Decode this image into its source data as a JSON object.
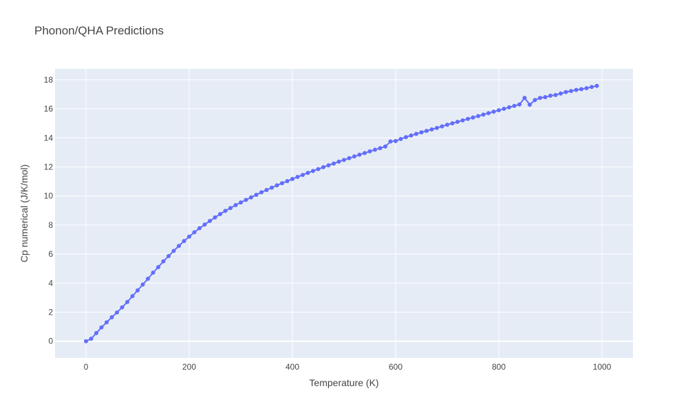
{
  "chart_data": {
    "type": "line",
    "title": "Phonon/QHA Predictions",
    "xlabel": "Temperature (K)",
    "ylabel": "Cp numerical (J/K/mol)",
    "xlim": [
      -60,
      1060
    ],
    "ylim": [
      -1.15,
      18.75
    ],
    "xticks": [
      0,
      200,
      400,
      600,
      800,
      1000
    ],
    "yticks": [
      0,
      2,
      4,
      6,
      8,
      10,
      12,
      14,
      16,
      18
    ],
    "grid": true,
    "legend": "none",
    "colors": {
      "series": "#636efa",
      "plot_bg": "#e5ecf6",
      "grid": "#ffffff"
    },
    "series": [
      {
        "mode": "lines+markers",
        "x": [
          0,
          10,
          20,
          30,
          40,
          50,
          60,
          70,
          80,
          90,
          100,
          110,
          120,
          130,
          140,
          150,
          160,
          170,
          180,
          190,
          200,
          210,
          220,
          230,
          240,
          250,
          260,
          270,
          280,
          290,
          300,
          310,
          320,
          330,
          340,
          350,
          360,
          370,
          380,
          390,
          400,
          410,
          420,
          430,
          440,
          450,
          460,
          470,
          480,
          490,
          500,
          510,
          520,
          530,
          540,
          550,
          560,
          570,
          580,
          590,
          600,
          610,
          620,
          630,
          640,
          650,
          660,
          670,
          680,
          690,
          700,
          710,
          720,
          730,
          740,
          750,
          760,
          770,
          780,
          790,
          800,
          810,
          820,
          830,
          840,
          850,
          860,
          870,
          880,
          890,
          900,
          910,
          920,
          930,
          940,
          950,
          960,
          970,
          980,
          990
        ],
        "y": [
          0,
          0.17,
          0.56,
          0.95,
          1.3,
          1.65,
          1.98,
          2.33,
          2.7,
          3.1,
          3.5,
          3.9,
          4.3,
          4.72,
          5.1,
          5.5,
          5.86,
          6.22,
          6.56,
          6.9,
          7.2,
          7.5,
          7.78,
          8.03,
          8.28,
          8.52,
          8.75,
          8.97,
          9.17,
          9.37,
          9.55,
          9.73,
          9.9,
          10.08,
          10.25,
          10.41,
          10.57,
          10.73,
          10.88,
          11.02,
          11.17,
          11.31,
          11.45,
          11.59,
          11.72,
          11.85,
          11.98,
          12.11,
          12.23,
          12.36,
          12.48,
          12.6,
          12.72,
          12.84,
          12.95,
          13.07,
          13.18,
          13.29,
          13.4,
          13.75,
          13.78,
          13.92,
          14.05,
          14.16,
          14.27,
          14.38,
          14.48,
          14.58,
          14.68,
          14.79,
          14.9,
          15.0,
          15.1,
          15.2,
          15.3,
          15.4,
          15.5,
          15.6,
          15.7,
          15.8,
          15.9,
          16.0,
          16.1,
          16.2,
          16.3,
          16.75,
          16.28,
          16.6,
          16.75,
          16.8,
          16.9,
          16.95,
          17.05,
          17.15,
          17.22,
          17.3,
          17.35,
          17.42,
          17.5,
          17.58
        ]
      }
    ]
  }
}
